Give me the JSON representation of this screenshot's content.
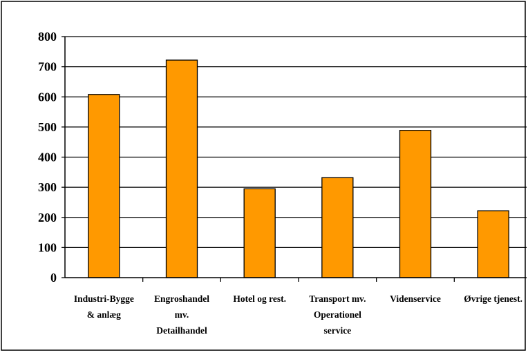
{
  "chart_data": {
    "type": "bar",
    "categories": [
      [
        "Industri-Bygge",
        "& anlæg"
      ],
      [
        "Engroshandel",
        "mv.",
        "Detailhandel"
      ],
      [
        "Hotel og rest."
      ],
      [
        "Transport mv.",
        "Operationel",
        "service"
      ],
      [
        "Videnservice"
      ],
      [
        "Øvrige tjenest."
      ]
    ],
    "values": [
      608,
      722,
      295,
      332,
      489,
      222
    ],
    "ylim": [
      0,
      800
    ],
    "yticks": [
      0,
      100,
      200,
      300,
      400,
      500,
      600,
      700,
      800
    ],
    "grid": true,
    "legend": "none",
    "colors": {
      "bar_fill": "#FF9900",
      "bar_stroke": "#000000",
      "grid": "#000000",
      "axis": "#000000",
      "border": "#000000"
    }
  }
}
